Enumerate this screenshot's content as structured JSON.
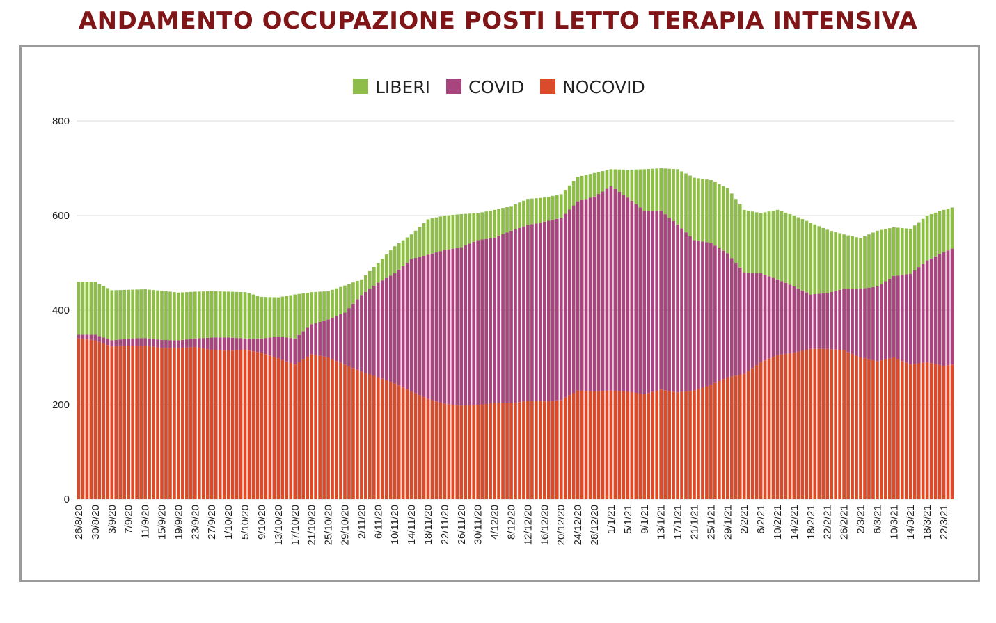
{
  "title": "ANDAMENTO OCCUPAZIONE POSTI LETTO TERAPIA INTENSIVA",
  "colors": {
    "title": "#7f1517",
    "LIBERI": "#8fbd4a",
    "COVID": "#a8457e",
    "NOCOVID": "#d94b2b",
    "grid": "#d9d9d9",
    "frame": "#9a9a9a"
  },
  "chart_data": {
    "type": "bar",
    "stacked": true,
    "title": "",
    "xlabel": "",
    "ylabel": "",
    "ylim": [
      0,
      800
    ],
    "yticks": [
      0,
      200,
      400,
      600,
      800
    ],
    "grid": true,
    "legend_position": "top-center",
    "x_range": [
      "2020-08-26",
      "2021-03-24"
    ],
    "x_tick_labels": [
      "26/8/20",
      "30/8/20",
      "3/9/20",
      "7/9/20",
      "11/9/20",
      "15/9/20",
      "19/9/20",
      "23/9/20",
      "27/9/20",
      "1/10/20",
      "5/10/20",
      "9/10/20",
      "13/10/20",
      "17/10/20",
      "21/10/20",
      "25/10/20",
      "29/10/20",
      "2/11/20",
      "6/11/20",
      "10/11/20",
      "14/11/20",
      "18/11/20",
      "22/11/20",
      "26/11/20",
      "30/11/20",
      "4/12/20",
      "8/12/20",
      "12/12/20",
      "16/12/20",
      "20/12/20",
      "24/12/20",
      "28/12/20",
      "1/1/21",
      "5/1/21",
      "9/1/21",
      "13/1/21",
      "17/1/21",
      "21/1/21",
      "25/1/21",
      "29/1/21",
      "2/2/21",
      "6/2/21",
      "10/2/21",
      "14/2/21",
      "18/2/21",
      "22/2/21",
      "26/2/21",
      "2/3/21",
      "6/3/21",
      "10/3/21",
      "14/3/21",
      "18/3/21",
      "22/3/21"
    ],
    "series_order": [
      "NOCOVID",
      "COVID",
      "LIBERI"
    ],
    "legend": [
      "LIBERI",
      "COVID",
      "NOCOVID"
    ],
    "anchors": [
      {
        "date": "2020-08-26",
        "nocovid": 340,
        "covid": 8,
        "total": 460
      },
      {
        "date": "2020-08-30",
        "nocovid": 336,
        "covid": 12,
        "total": 460
      },
      {
        "date": "2020-09-03",
        "nocovid": 323,
        "covid": 13,
        "total": 442
      },
      {
        "date": "2020-09-07",
        "nocovid": 325,
        "covid": 15,
        "total": 443
      },
      {
        "date": "2020-09-11",
        "nocovid": 325,
        "covid": 16,
        "total": 444
      },
      {
        "date": "2020-09-15",
        "nocovid": 320,
        "covid": 17,
        "total": 441
      },
      {
        "date": "2020-09-19",
        "nocovid": 320,
        "covid": 16,
        "total": 437
      },
      {
        "date": "2020-09-23",
        "nocovid": 322,
        "covid": 18,
        "total": 439
      },
      {
        "date": "2020-09-27",
        "nocovid": 316,
        "covid": 26,
        "total": 440
      },
      {
        "date": "2020-10-01",
        "nocovid": 314,
        "covid": 28,
        "total": 439
      },
      {
        "date": "2020-10-05",
        "nocovid": 316,
        "covid": 24,
        "total": 438
      },
      {
        "date": "2020-10-09",
        "nocovid": 310,
        "covid": 30,
        "total": 428
      },
      {
        "date": "2020-10-13",
        "nocovid": 298,
        "covid": 46,
        "total": 427
      },
      {
        "date": "2020-10-17",
        "nocovid": 285,
        "covid": 55,
        "total": 433
      },
      {
        "date": "2020-10-21",
        "nocovid": 307,
        "covid": 63,
        "total": 438
      },
      {
        "date": "2020-10-25",
        "nocovid": 300,
        "covid": 80,
        "total": 440
      },
      {
        "date": "2020-10-29",
        "nocovid": 285,
        "covid": 110,
        "total": 452
      },
      {
        "date": "2020-11-02",
        "nocovid": 270,
        "covid": 162,
        "total": 465
      },
      {
        "date": "2020-11-06",
        "nocovid": 258,
        "covid": 200,
        "total": 500
      },
      {
        "date": "2020-11-10",
        "nocovid": 245,
        "covid": 233,
        "total": 535
      },
      {
        "date": "2020-11-14",
        "nocovid": 228,
        "covid": 280,
        "total": 560
      },
      {
        "date": "2020-11-18",
        "nocovid": 212,
        "covid": 305,
        "total": 592
      },
      {
        "date": "2020-11-22",
        "nocovid": 202,
        "covid": 325,
        "total": 600
      },
      {
        "date": "2020-11-26",
        "nocovid": 198,
        "covid": 335,
        "total": 603
      },
      {
        "date": "2020-11-30",
        "nocovid": 200,
        "covid": 348,
        "total": 605
      },
      {
        "date": "2020-12-04",
        "nocovid": 203,
        "covid": 350,
        "total": 612
      },
      {
        "date": "2020-12-08",
        "nocovid": 203,
        "covid": 365,
        "total": 620
      },
      {
        "date": "2020-12-12",
        "nocovid": 208,
        "covid": 372,
        "total": 635
      },
      {
        "date": "2020-12-16",
        "nocovid": 207,
        "covid": 380,
        "total": 638
      },
      {
        "date": "2020-12-20",
        "nocovid": 210,
        "covid": 385,
        "total": 645
      },
      {
        "date": "2020-12-24",
        "nocovid": 230,
        "covid": 400,
        "total": 682
      },
      {
        "date": "2020-12-28",
        "nocovid": 228,
        "covid": 412,
        "total": 690
      },
      {
        "date": "2021-01-01",
        "nocovid": 230,
        "covid": 432,
        "total": 698
      },
      {
        "date": "2021-01-05",
        "nocovid": 228,
        "covid": 410,
        "total": 697
      },
      {
        "date": "2021-01-09",
        "nocovid": 222,
        "covid": 388,
        "total": 698
      },
      {
        "date": "2021-01-13",
        "nocovid": 232,
        "covid": 378,
        "total": 700
      },
      {
        "date": "2021-01-17",
        "nocovid": 226,
        "covid": 355,
        "total": 698
      },
      {
        "date": "2021-01-21",
        "nocovid": 230,
        "covid": 318,
        "total": 680
      },
      {
        "date": "2021-01-25",
        "nocovid": 242,
        "covid": 300,
        "total": 675
      },
      {
        "date": "2021-01-29",
        "nocovid": 258,
        "covid": 262,
        "total": 658
      },
      {
        "date": "2021-02-02",
        "nocovid": 265,
        "covid": 215,
        "total": 612
      },
      {
        "date": "2021-02-06",
        "nocovid": 290,
        "covid": 188,
        "total": 605
      },
      {
        "date": "2021-02-10",
        "nocovid": 305,
        "covid": 160,
        "total": 612
      },
      {
        "date": "2021-02-14",
        "nocovid": 310,
        "covid": 140,
        "total": 600
      },
      {
        "date": "2021-02-18",
        "nocovid": 318,
        "covid": 115,
        "total": 585
      },
      {
        "date": "2021-02-22",
        "nocovid": 318,
        "covid": 118,
        "total": 570
      },
      {
        "date": "2021-02-26",
        "nocovid": 315,
        "covid": 130,
        "total": 560
      },
      {
        "date": "2021-03-02",
        "nocovid": 300,
        "covid": 145,
        "total": 552
      },
      {
        "date": "2021-03-06",
        "nocovid": 292,
        "covid": 158,
        "total": 568
      },
      {
        "date": "2021-03-10",
        "nocovid": 300,
        "covid": 172,
        "total": 575
      },
      {
        "date": "2021-03-14",
        "nocovid": 285,
        "covid": 192,
        "total": 572
      },
      {
        "date": "2021-03-18",
        "nocovid": 290,
        "covid": 215,
        "total": 600
      },
      {
        "date": "2021-03-22",
        "nocovid": 282,
        "covid": 240,
        "total": 612
      },
      {
        "date": "2021-03-24",
        "nocovid": 285,
        "covid": 245,
        "total": 617
      }
    ]
  }
}
